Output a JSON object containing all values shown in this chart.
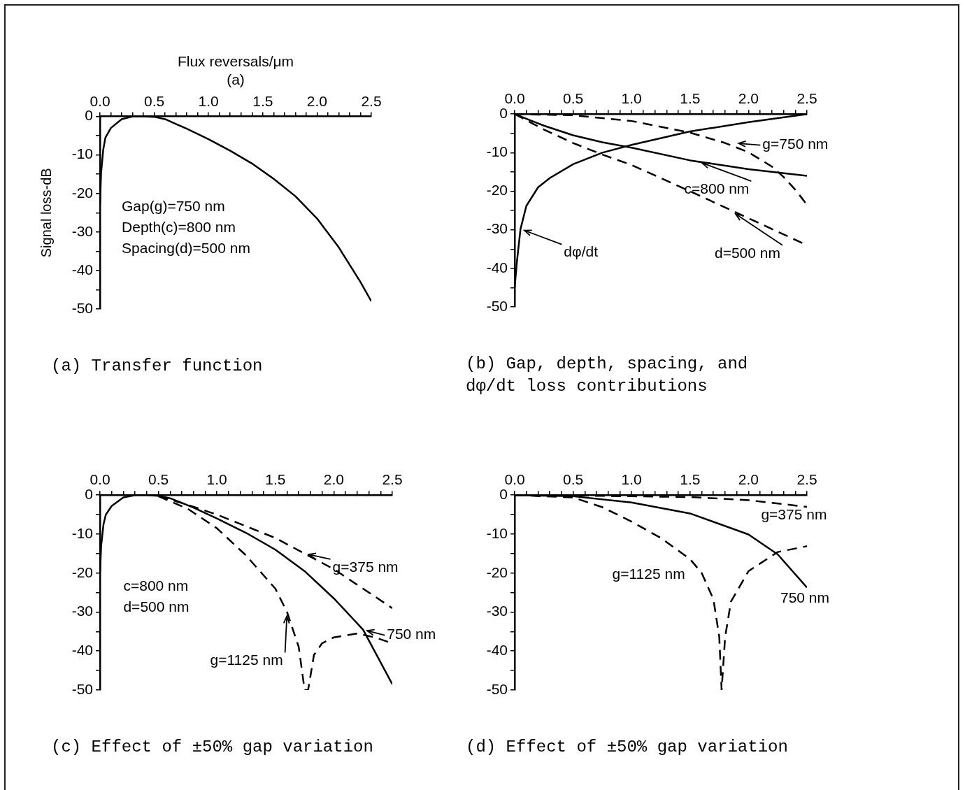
{
  "chart_data": [
    {
      "type": "line",
      "title": "(a) Transfer function",
      "xlabel": "Flux reversals/μm",
      "subtitle": "(a)",
      "ylabel": "Signal loss-dB",
      "xlim": [
        0,
        2.5
      ],
      "ylim": [
        -50,
        0
      ],
      "xticks": [
        {
          "value": 0,
          "label": "0.0"
        },
        {
          "value": 0.1,
          "label": null
        },
        {
          "value": 0.2,
          "label": null
        },
        {
          "value": 0.3,
          "label": null
        },
        {
          "value": 0.4,
          "label": null
        },
        0.5,
        {
          "value": 0.6,
          "label": null
        },
        {
          "value": 0.7,
          "label": null
        },
        {
          "value": 0.8,
          "label": null
        },
        {
          "value": 0.9,
          "label": null
        },
        {
          "value": 1,
          "label": "1.0"
        },
        {
          "value": 1.1,
          "label": null
        },
        {
          "value": 1.2,
          "label": null
        },
        {
          "value": 1.3,
          "label": null
        },
        {
          "value": 1.4,
          "label": null
        },
        1.5,
        {
          "value": 1.6,
          "label": null
        },
        {
          "value": 1.7,
          "label": null
        },
        {
          "value": 1.8,
          "label": null
        },
        {
          "value": 1.9,
          "label": null
        },
        {
          "value": 2,
          "label": "2.0"
        },
        {
          "value": 2.1,
          "label": null
        },
        {
          "value": 2.2,
          "label": null
        },
        {
          "value": 2.3,
          "label": null
        },
        {
          "value": 2.4,
          "label": null
        },
        2.5
      ],
      "yticks": [
        -50,
        {
          "value": -45,
          "label": null
        },
        -40,
        {
          "value": -35,
          "label": null
        },
        -30,
        {
          "value": -25,
          "label": null
        },
        -20,
        {
          "value": -15,
          "label": null
        },
        -10,
        {
          "value": -5,
          "label": null
        },
        0
      ],
      "annotations": [
        "Gap(g)=750 nm",
        "Depth(c)=800 nm",
        "Spacing(d)=500 nm"
      ],
      "series": [
        {
          "color": "#000000",
          "line_style": "solid",
          "x": [
            0,
            0.01,
            0.03,
            0.05,
            0.1,
            0.2,
            0.3,
            0.4,
            0.5,
            0.6,
            0.8,
            1.0,
            1.2,
            1.4,
            1.6,
            1.8,
            2.0,
            2.2,
            2.4,
            2.5
          ],
          "values": [
            -23,
            -14.7,
            -8.6,
            -5.5,
            -3,
            -0.7,
            0,
            0,
            -0.1,
            -0.7,
            -3.2,
            -5.9,
            -8.9,
            -12.2,
            -16.2,
            -20.7,
            -26.5,
            -34,
            -43,
            -48
          ]
        }
      ]
    },
    {
      "type": "line",
      "title": "(b) Gap, depth, spacing, and\ndφ/dt loss contributions",
      "xlim": [
        0,
        2.5
      ],
      "ylim": [
        -50,
        0
      ],
      "xticks": [
        {
          "value": 0,
          "label": "0.0"
        },
        {
          "value": 0.1,
          "label": null
        },
        {
          "value": 0.2,
          "label": null
        },
        {
          "value": 0.3,
          "label": null
        },
        {
          "value": 0.4,
          "label": null
        },
        0.5,
        {
          "value": 0.6,
          "label": null
        },
        {
          "value": 0.7,
          "label": null
        },
        {
          "value": 0.8,
          "label": null
        },
        {
          "value": 0.9,
          "label": null
        },
        {
          "value": 1,
          "label": "1.0"
        },
        {
          "value": 1.1,
          "label": null
        },
        {
          "value": 1.2,
          "label": null
        },
        {
          "value": 1.3,
          "label": null
        },
        {
          "value": 1.4,
          "label": null
        },
        1.5,
        {
          "value": 1.6,
          "label": null
        },
        {
          "value": 1.7,
          "label": null
        },
        {
          "value": 1.8,
          "label": null
        },
        {
          "value": 1.9,
          "label": null
        },
        {
          "value": 2,
          "label": "2.0"
        },
        {
          "value": 2.1,
          "label": null
        },
        {
          "value": 2.2,
          "label": null
        },
        {
          "value": 2.3,
          "label": null
        },
        {
          "value": 2.4,
          "label": null
        },
        2.5
      ],
      "yticks": [
        -50,
        {
          "value": -45,
          "label": null
        },
        -40,
        {
          "value": -35,
          "label": null
        },
        -30,
        {
          "value": -25,
          "label": null
        },
        -20,
        {
          "value": -15,
          "label": null
        },
        -10,
        {
          "value": -5,
          "label": null
        },
        0
      ],
      "annotations": [
        {
          "text": "g=750 nm",
          "x": 1.88,
          "y": -7.5
        },
        {
          "text": "c=800 nm",
          "x": 1.57,
          "y": -12.3
        },
        {
          "text": "d=500 nm",
          "x": 1.86,
          "y": -25.3
        },
        {
          "text": "dφ/dt",
          "x": 0.05,
          "y": -29.8
        }
      ],
      "series": [
        {
          "color": "#000000",
          "line_style": "dashed",
          "x": [
            0,
            0.5,
            1.0,
            1.5,
            1.8,
            2.0,
            2.2,
            2.3,
            2.4,
            2.5
          ],
          "values": [
            0,
            -0.3,
            -1.8,
            -4.8,
            -7.5,
            -9.9,
            -13.6,
            -16.3,
            -19.6,
            -23.5
          ]
        },
        {
          "color": "#000000",
          "line_style": "solid",
          "x": [
            0,
            0.25,
            0.5,
            0.75,
            1.0,
            1.5,
            2.0,
            2.5
          ],
          "values": [
            0,
            -3,
            -5.5,
            -7.3,
            -8.7,
            -12,
            -14.3,
            -16
          ]
        },
        {
          "color": "#000000",
          "line_style": "dashed",
          "x": [
            0,
            0.25,
            0.5,
            0.75,
            1.0,
            1.5,
            2.0,
            2.5
          ],
          "values": [
            0,
            -4,
            -7.5,
            -10.5,
            -13.2,
            -20,
            -27,
            -34
          ]
        },
        {
          "color": "#000000",
          "line_style": "solid",
          "x": [
            0,
            0.02,
            0.05,
            0.1,
            0.2,
            0.3,
            0.5,
            0.75,
            1.0,
            1.5,
            2.0,
            2.5
          ],
          "values": [
            -45,
            -38,
            -29.8,
            -23.8,
            -19,
            -16.6,
            -13,
            -10,
            -8,
            -4.5,
            -2.1,
            0
          ]
        }
      ]
    },
    {
      "type": "line",
      "title": "(c) Effect of ±50% gap variation",
      "xlim": [
        0,
        2.5
      ],
      "ylim": [
        -50,
        0
      ],
      "xticks": [
        {
          "value": 0,
          "label": "0.0"
        },
        {
          "value": 0.1,
          "label": null
        },
        {
          "value": 0.2,
          "label": null
        },
        {
          "value": 0.3,
          "label": null
        },
        {
          "value": 0.4,
          "label": null
        },
        0.5,
        {
          "value": 0.6,
          "label": null
        },
        {
          "value": 0.7,
          "label": null
        },
        {
          "value": 0.8,
          "label": null
        },
        {
          "value": 0.9,
          "label": null
        },
        {
          "value": 1,
          "label": "1.0"
        },
        {
          "value": 1.1,
          "label": null
        },
        {
          "value": 1.2,
          "label": null
        },
        {
          "value": 1.3,
          "label": null
        },
        {
          "value": 1.4,
          "label": null
        },
        1.5,
        {
          "value": 1.6,
          "label": null
        },
        {
          "value": 1.7,
          "label": null
        },
        {
          "value": 1.8,
          "label": null
        },
        {
          "value": 1.9,
          "label": null
        },
        {
          "value": 2,
          "label": "2.0"
        },
        {
          "value": 2.1,
          "label": null
        },
        {
          "value": 2.2,
          "label": null
        },
        {
          "value": 2.3,
          "label": null
        },
        {
          "value": 2.4,
          "label": null
        },
        2.5
      ],
      "yticks": [
        -50,
        {
          "value": -45,
          "label": null
        },
        -40,
        {
          "value": -35,
          "label": null
        },
        -30,
        {
          "value": -25,
          "label": null
        },
        -20,
        {
          "value": -15,
          "label": null
        },
        -10,
        {
          "value": -5,
          "label": null
        },
        0
      ],
      "annotations": [
        "c=800 nm",
        "d=500 nm",
        {
          "text": "g=375 nm",
          "x": 1.75,
          "y": -15
        },
        {
          "text": "750 nm",
          "x": 2.25,
          "y": -34.5
        },
        {
          "text": "g=1125 nm",
          "x": 1.6,
          "y": -30
        }
      ],
      "series": [
        {
          "color": "#000000",
          "line_style": "solid",
          "x": [
            0,
            0.01,
            0.03,
            0.05,
            0.1,
            0.2,
            0.3,
            0.4,
            0.5,
            0.6,
            0.8,
            1.0,
            1.25,
            1.5,
            1.75,
            2.0,
            2.25,
            2.5
          ],
          "values": [
            -20,
            -13,
            -7.5,
            -5,
            -2.8,
            -0.6,
            0,
            0,
            -0.2,
            -0.8,
            -3.2,
            -6,
            -9.7,
            -14,
            -19.5,
            -26.5,
            -34.5,
            -48.5
          ]
        },
        {
          "color": "#000000",
          "line_style": "dashed",
          "x": [
            0.5,
            0.75,
            1.0,
            1.25,
            1.5,
            1.75,
            2.0,
            2.25,
            2.5
          ],
          "values": [
            -0.2,
            -2.5,
            -5,
            -8,
            -11,
            -15,
            -19,
            -24,
            -29
          ]
        },
        {
          "color": "#000000",
          "line_style": "dashed",
          "x": [
            0.5,
            0.75,
            1.0,
            1.25,
            1.5,
            1.6,
            1.7,
            1.75,
            1.78,
            1.83,
            1.9,
            2.0,
            2.2,
            2.35,
            2.5
          ],
          "values": [
            -0.3,
            -3.5,
            -8.5,
            -15.5,
            -24,
            -30,
            -39,
            -50,
            -50,
            -41,
            -38,
            -36.5,
            -35.5,
            -36.5,
            -38
          ]
        }
      ]
    },
    {
      "type": "line",
      "title": "(d) Effect of ±50% gap variation",
      "xlim": [
        0,
        2.5
      ],
      "ylim": [
        -50,
        0
      ],
      "xticks": [
        {
          "value": 0,
          "label": "0.0"
        },
        {
          "value": 0.1,
          "label": null
        },
        {
          "value": 0.2,
          "label": null
        },
        {
          "value": 0.3,
          "label": null
        },
        {
          "value": 0.4,
          "label": null
        },
        0.5,
        {
          "value": 0.6,
          "label": null
        },
        {
          "value": 0.7,
          "label": null
        },
        {
          "value": 0.8,
          "label": null
        },
        {
          "value": 0.9,
          "label": null
        },
        {
          "value": 1,
          "label": "1.0"
        },
        {
          "value": 1.1,
          "label": null
        },
        {
          "value": 1.2,
          "label": null
        },
        {
          "value": 1.3,
          "label": null
        },
        {
          "value": 1.4,
          "label": null
        },
        1.5,
        {
          "value": 1.6,
          "label": null
        },
        {
          "value": 1.7,
          "label": null
        },
        {
          "value": 1.8,
          "label": null
        },
        {
          "value": 1.9,
          "label": null
        },
        {
          "value": 2,
          "label": "2.0"
        },
        {
          "value": 2.1,
          "label": null
        },
        {
          "value": 2.2,
          "label": null
        },
        {
          "value": 2.3,
          "label": null
        },
        {
          "value": 2.4,
          "label": null
        },
        2.5
      ],
      "yticks": [
        -50,
        {
          "value": -45,
          "label": null
        },
        -40,
        {
          "value": -35,
          "label": null
        },
        -30,
        {
          "value": -25,
          "label": null
        },
        -20,
        {
          "value": -15,
          "label": null
        },
        -10,
        {
          "value": -5,
          "label": null
        },
        0
      ],
      "annotations": [
        {
          "text": "g=375 nm",
          "x": 2.0,
          "y": -1.3
        },
        {
          "text": "g=1125 nm",
          "x": 1.6,
          "y": -20
        },
        {
          "text": "750 nm",
          "x": 2.5,
          "y": -23.7
        }
      ],
      "series": [
        {
          "color": "#000000",
          "line_style": "dashed",
          "x": [
            0,
            0.5,
            1.0,
            1.5,
            2.0,
            2.5
          ],
          "values": [
            0,
            -0.1,
            -0.3,
            -0.5,
            -1.3,
            -3
          ]
        },
        {
          "color": "#000000",
          "line_style": "solid",
          "x": [
            0,
            0.5,
            1.0,
            1.5,
            2.0,
            2.25,
            2.5
          ],
          "values": [
            0,
            -0.3,
            -1.9,
            -4.7,
            -10.1,
            -15.2,
            -23.7
          ]
        },
        {
          "color": "#000000",
          "line_style": "dashed",
          "x": [
            0,
            0.5,
            0.75,
            1.0,
            1.25,
            1.5,
            1.6,
            1.7,
            1.75,
            1.77,
            1.8,
            1.85,
            2.0,
            2.25,
            2.5
          ],
          "values": [
            0,
            -0.6,
            -3.1,
            -6.8,
            -11,
            -16.4,
            -20,
            -26.7,
            -36.4,
            -50,
            -36.4,
            -27.3,
            -19.5,
            -14.6,
            -13.1
          ]
        }
      ]
    }
  ]
}
